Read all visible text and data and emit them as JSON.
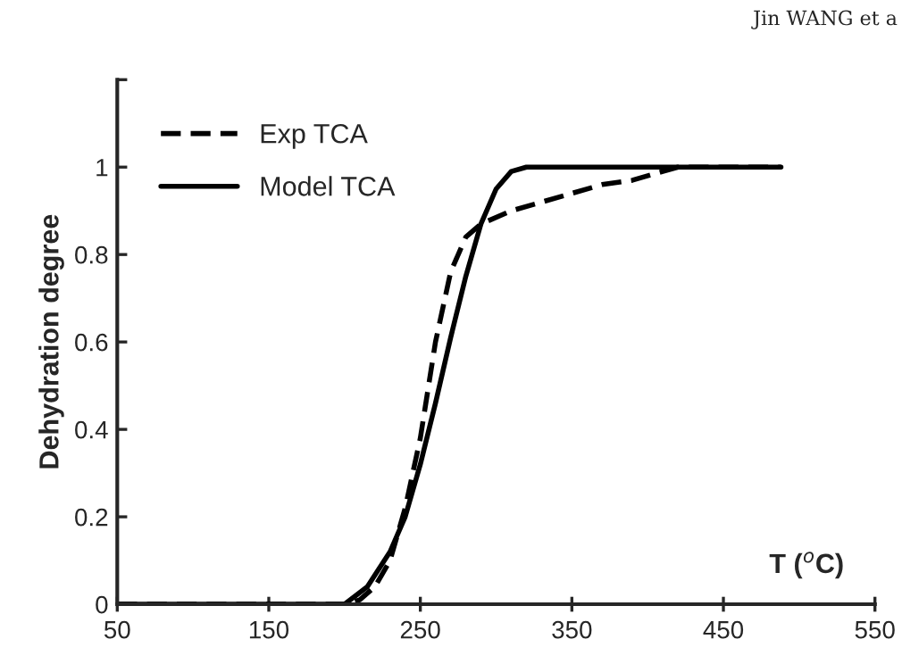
{
  "chart_data": {
    "type": "line",
    "xlabel": "T ($^{o}$C)",
    "ylabel": "Dehydration degree",
    "annotations": [
      "Jin WANG et a"
    ],
    "xlim": [
      50,
      550
    ],
    "xticks": [
      50,
      150,
      250,
      350,
      450,
      550
    ],
    "ylim": [
      0,
      1.2
    ],
    "yticks": [
      0,
      0.2,
      0.4,
      0.6,
      0.8,
      1,
      {
        "value": 1.2,
        "label": null
      }
    ],
    "grid": false,
    "legend": "top left",
    "marker": "none",
    "series": [
      {
        "name": "Exp TCA",
        "color": "#000000",
        "line_style": "dashed",
        "x": [
          50,
          200,
          210,
          220,
          230,
          240,
          250,
          260,
          270,
          280,
          290,
          310,
          330,
          350,
          370,
          390,
          410,
          420,
          488
        ],
        "values": [
          0,
          0,
          0.01,
          0.04,
          0.1,
          0.22,
          0.38,
          0.6,
          0.76,
          0.84,
          0.87,
          0.9,
          0.92,
          0.94,
          0.96,
          0.97,
          0.99,
          1.0,
          1.0
        ]
      },
      {
        "name": "Model TCA",
        "color": "#000000",
        "line_style": "solid",
        "x": [
          50,
          200,
          215,
          230,
          240,
          250,
          260,
          270,
          280,
          290,
          300,
          310,
          320,
          488
        ],
        "values": [
          0,
          0,
          0.04,
          0.12,
          0.2,
          0.32,
          0.46,
          0.61,
          0.75,
          0.87,
          0.95,
          0.99,
          1.0,
          1.0
        ]
      }
    ]
  }
}
